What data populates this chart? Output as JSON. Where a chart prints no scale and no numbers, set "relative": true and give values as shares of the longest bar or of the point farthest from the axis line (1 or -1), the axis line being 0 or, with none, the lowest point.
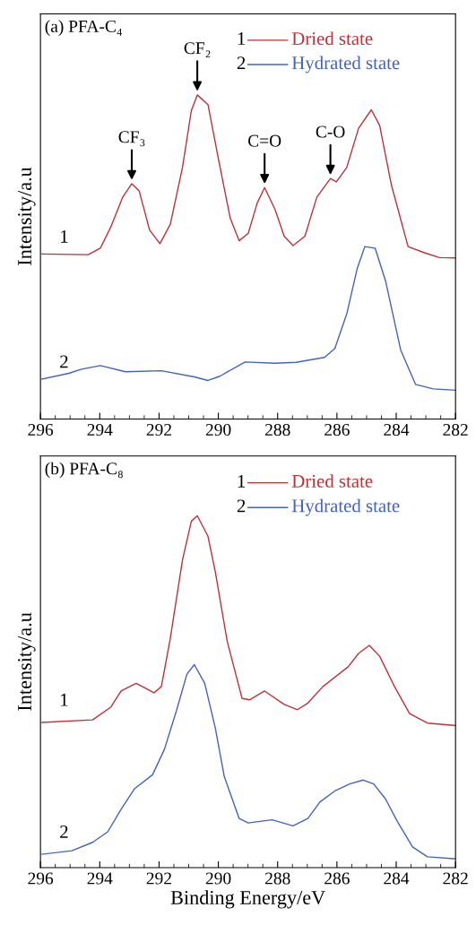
{
  "chart_data": [
    {
      "type": "line",
      "title": "(a) PFA-C₄",
      "ylabel": "Intensity/a.u",
      "relative": true,
      "legend": "top right",
      "grid": false,
      "tick_labels": "x",
      "xlim": [
        296,
        282
      ],
      "xticks": [
        296,
        294,
        292,
        290,
        288,
        286,
        284,
        282
      ],
      "series": [
        {
          "name": "Dried state",
          "color": "#c03036",
          "x": [
            295.95,
            294.39,
            293.98,
            293.63,
            293.23,
            292.92,
            292.67,
            292.32,
            291.97,
            291.62,
            291.21,
            290.91,
            290.71,
            290.35,
            290.0,
            289.6,
            289.3,
            288.99,
            288.69,
            288.44,
            288.09,
            287.78,
            287.48,
            287.08,
            286.68,
            286.22,
            286.02,
            285.67,
            285.27,
            284.84,
            284.56,
            284.16,
            283.6,
            283.05,
            282.54,
            282.0
          ],
          "values": [
            0.509,
            0.507,
            0.527,
            0.592,
            0.684,
            0.726,
            0.704,
            0.583,
            0.541,
            0.601,
            0.776,
            0.952,
            1.0,
            0.97,
            0.804,
            0.62,
            0.55,
            0.573,
            0.666,
            0.714,
            0.647,
            0.564,
            0.535,
            0.564,
            0.684,
            0.742,
            0.732,
            0.776,
            0.897,
            0.954,
            0.906,
            0.721,
            0.532,
            0.513,
            0.498,
            0.497
          ]
        },
        {
          "name": "Hydrated state",
          "color": "#4262c0",
          "x": [
            295.95,
            295.04,
            294.64,
            293.98,
            293.13,
            291.92,
            290.81,
            290.35,
            289.95,
            289.1,
            288.09,
            287.38,
            286.42,
            286.07,
            285.67,
            285.32,
            285.06,
            284.71,
            284.36,
            283.85,
            283.35,
            282.75,
            282.0
          ],
          "values": [
            0.123,
            0.141,
            0.153,
            0.165,
            0.146,
            0.149,
            0.13,
            0.119,
            0.132,
            0.176,
            0.172,
            0.175,
            0.19,
            0.218,
            0.324,
            0.463,
            0.532,
            0.527,
            0.426,
            0.213,
            0.107,
            0.093,
            0.089
          ]
        }
      ],
      "annotations": [
        "1",
        "2",
        "1",
        "2",
        {
          "text": "CF₃",
          "x": 292.92,
          "y": 0.726
        },
        {
          "text": "CF₂",
          "x": 290.71,
          "y": 1.0
        },
        {
          "text": "C=O",
          "x": 288.44,
          "y": 0.714
        },
        {
          "text": "C-O",
          "x": 286.22,
          "y": 0.742
        }
      ]
    },
    {
      "type": "line",
      "title": "(b) PFA-C₈",
      "ylabel": "Intensity/a.u",
      "xlabel": "Binding Energy/eV",
      "relative": true,
      "legend": "top right",
      "grid": false,
      "tick_labels": "x",
      "xlim": [
        296,
        282
      ],
      "xticks": [
        296,
        294,
        292,
        290,
        288,
        286,
        284,
        282
      ],
      "series": [
        {
          "name": "Dried state",
          "color": "#c03036",
          "x": [
            295.95,
            294.24,
            293.63,
            293.28,
            292.77,
            292.17,
            291.92,
            291.62,
            291.21,
            290.91,
            290.71,
            290.35,
            290.1,
            289.7,
            289.2,
            288.95,
            288.44,
            287.78,
            287.33,
            286.98,
            286.47,
            285.62,
            285.27,
            284.91,
            284.56,
            284.06,
            283.55,
            282.95,
            282.0
          ],
          "values": [
            0.413,
            0.42,
            0.456,
            0.502,
            0.524,
            0.497,
            0.515,
            0.652,
            0.874,
            0.985,
            1.0,
            0.942,
            0.84,
            0.643,
            0.481,
            0.477,
            0.502,
            0.464,
            0.449,
            0.468,
            0.515,
            0.571,
            0.609,
            0.632,
            0.601,
            0.515,
            0.438,
            0.411,
            0.404
          ]
        },
        {
          "name": "Hydrated state",
          "color": "#4262c0",
          "x": [
            295.95,
            294.94,
            294.24,
            293.73,
            293.28,
            292.82,
            292.22,
            291.82,
            291.41,
            291.06,
            290.81,
            290.46,
            290.1,
            289.8,
            289.3,
            288.99,
            288.19,
            287.48,
            286.98,
            286.57,
            286.07,
            285.57,
            285.11,
            284.76,
            284.36,
            283.96,
            283.45,
            282.95,
            282.0
          ],
          "values": [
            0.038,
            0.048,
            0.072,
            0.102,
            0.166,
            0.225,
            0.264,
            0.336,
            0.447,
            0.55,
            0.577,
            0.524,
            0.396,
            0.259,
            0.14,
            0.127,
            0.136,
            0.119,
            0.14,
            0.187,
            0.218,
            0.238,
            0.249,
            0.238,
            0.195,
            0.131,
            0.059,
            0.031,
            0.025
          ]
        }
      ],
      "annotations": [
        "1",
        "2",
        "1",
        "2"
      ]
    }
  ]
}
